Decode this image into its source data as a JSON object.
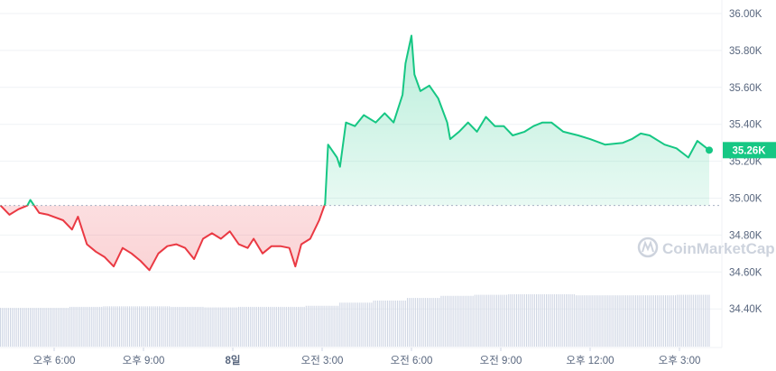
{
  "chart_data": {
    "type": "line",
    "title": "",
    "xlabel": "",
    "ylabel": "",
    "ylim": [
      34.2,
      36.05
    ],
    "y_unit_suffix": "K",
    "y_ticks": [
      "36.00K",
      "35.80K",
      "35.60K",
      "35.40K",
      "35.20K",
      "35.00K",
      "34.80K",
      "34.60K",
      "34.40K"
    ],
    "x_ticks": [
      {
        "h": 18,
        "label": "오후 6:00"
      },
      {
        "h": 21,
        "label": "오후 9:00"
      },
      {
        "h": 24,
        "label": "8일"
      },
      {
        "h": 27,
        "label": "오전 3:00"
      },
      {
        "h": 30,
        "label": "오전 6:00"
      },
      {
        "h": 33,
        "label": "오전 9:00"
      },
      {
        "h": 36,
        "label": "오후 12:00"
      },
      {
        "h": 39,
        "label": "오후 3:00"
      }
    ],
    "x_range_hours": [
      16.2,
      40.2
    ],
    "baseline": 34.96,
    "current_price_label": "35.26K",
    "grid": true,
    "colors": {
      "up": "#16c784",
      "down": "#ea3943",
      "volume": "#cfd6e4",
      "grid": "#eff2f5",
      "axis_text": "#58667e"
    },
    "series": [
      {
        "points": [
          [
            16.2,
            34.96
          ],
          [
            16.5,
            34.91
          ],
          [
            16.8,
            34.94
          ],
          [
            17.1,
            34.96
          ],
          [
            17.2,
            34.99
          ],
          [
            17.5,
            34.92
          ],
          [
            17.8,
            34.91
          ],
          [
            18.3,
            34.88
          ],
          [
            18.6,
            34.83
          ],
          [
            18.8,
            34.9
          ],
          [
            19.1,
            34.75
          ],
          [
            19.4,
            34.71
          ],
          [
            19.7,
            34.68
          ],
          [
            20.0,
            34.63
          ],
          [
            20.3,
            34.73
          ],
          [
            20.6,
            34.7
          ],
          [
            20.9,
            34.66
          ],
          [
            21.2,
            34.61
          ],
          [
            21.5,
            34.7
          ],
          [
            21.8,
            34.74
          ],
          [
            22.1,
            34.75
          ],
          [
            22.4,
            34.73
          ],
          [
            22.7,
            34.67
          ],
          [
            23.0,
            34.78
          ],
          [
            23.3,
            34.81
          ],
          [
            23.6,
            34.78
          ],
          [
            23.9,
            34.82
          ],
          [
            24.2,
            34.75
          ],
          [
            24.5,
            34.73
          ],
          [
            24.7,
            34.78
          ],
          [
            25.0,
            34.7
          ],
          [
            25.3,
            34.74
          ],
          [
            25.6,
            34.74
          ],
          [
            25.9,
            34.73
          ],
          [
            26.1,
            34.63
          ],
          [
            26.3,
            34.75
          ],
          [
            26.6,
            34.78
          ],
          [
            26.9,
            34.88
          ],
          [
            27.1,
            34.97
          ],
          [
            27.2,
            35.29
          ],
          [
            27.5,
            35.22
          ],
          [
            27.6,
            35.17
          ],
          [
            27.8,
            35.41
          ],
          [
            28.1,
            35.39
          ],
          [
            28.4,
            35.45
          ],
          [
            28.8,
            35.41
          ],
          [
            29.1,
            35.46
          ],
          [
            29.4,
            35.41
          ],
          [
            29.7,
            35.56
          ],
          [
            29.8,
            35.73
          ],
          [
            30.0,
            35.88
          ],
          [
            30.1,
            35.67
          ],
          [
            30.3,
            35.58
          ],
          [
            30.6,
            35.61
          ],
          [
            30.9,
            35.54
          ],
          [
            31.2,
            35.41
          ],
          [
            31.3,
            35.32
          ],
          [
            31.6,
            35.36
          ],
          [
            31.9,
            35.41
          ],
          [
            32.2,
            35.36
          ],
          [
            32.5,
            35.44
          ],
          [
            32.8,
            35.39
          ],
          [
            33.1,
            35.39
          ],
          [
            33.4,
            35.34
          ],
          [
            33.8,
            35.36
          ],
          [
            34.1,
            35.39
          ],
          [
            34.4,
            35.41
          ],
          [
            34.7,
            35.41
          ],
          [
            35.1,
            35.36
          ],
          [
            35.6,
            35.34
          ],
          [
            36.0,
            35.32
          ],
          [
            36.5,
            35.29
          ],
          [
            37.1,
            35.3
          ],
          [
            37.4,
            35.32
          ],
          [
            37.7,
            35.35
          ],
          [
            38.0,
            35.34
          ],
          [
            38.5,
            35.29
          ],
          [
            38.9,
            35.27
          ],
          [
            39.3,
            35.22
          ],
          [
            39.6,
            35.31
          ],
          [
            40.0,
            35.26
          ]
        ]
      }
    ],
    "volume_relative": [
      0.74,
      0.74,
      0.76,
      0.77,
      0.77,
      0.76,
      0.75,
      0.76,
      0.76,
      0.78,
      0.84,
      0.88,
      0.93,
      0.97,
      0.99,
      1.0,
      1.0,
      0.98,
      0.98,
      0.98,
      0.99
    ],
    "watermark": "CoinMarketCap"
  }
}
